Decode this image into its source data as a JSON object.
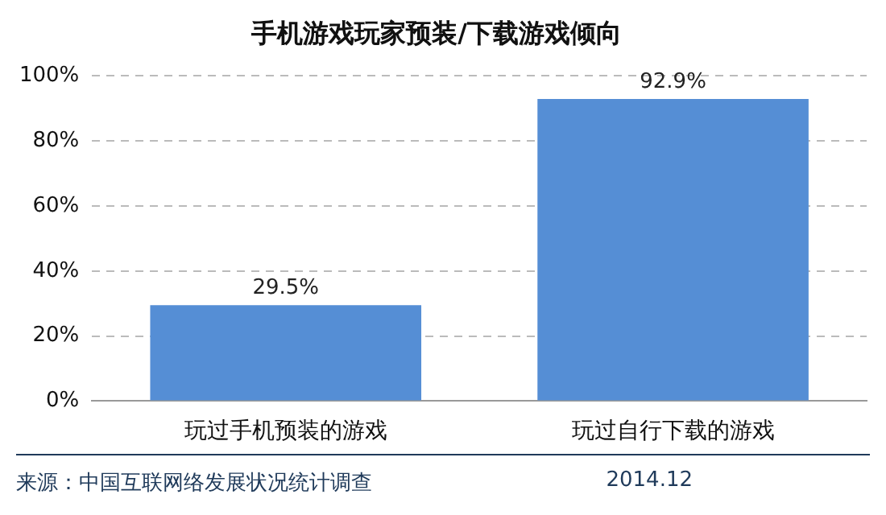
{
  "chart_data": {
    "type": "bar",
    "title": "手机游戏玩家预装/下载游戏倾向",
    "categories": [
      "玩过手机预装的游戏",
      "玩过自行下载的游戏"
    ],
    "values": [
      29.5,
      92.9
    ],
    "color": "#558ed5",
    "value_labels": [
      "29.5%",
      "92.9%"
    ],
    "ylim": [
      0,
      100
    ],
    "yticks": [
      {
        "value": 0,
        "label": "0%"
      },
      {
        "value": 20,
        "label": "20%"
      },
      {
        "value": 40,
        "label": "40%"
      },
      {
        "value": 60,
        "label": "60%"
      },
      {
        "value": 80,
        "label": "80%"
      },
      {
        "value": 100,
        "label": "100%"
      }
    ],
    "grid": "y",
    "legend": false,
    "annotations": [
      "来源：中国互联网络发展状况统计调查",
      "2014.12"
    ]
  }
}
